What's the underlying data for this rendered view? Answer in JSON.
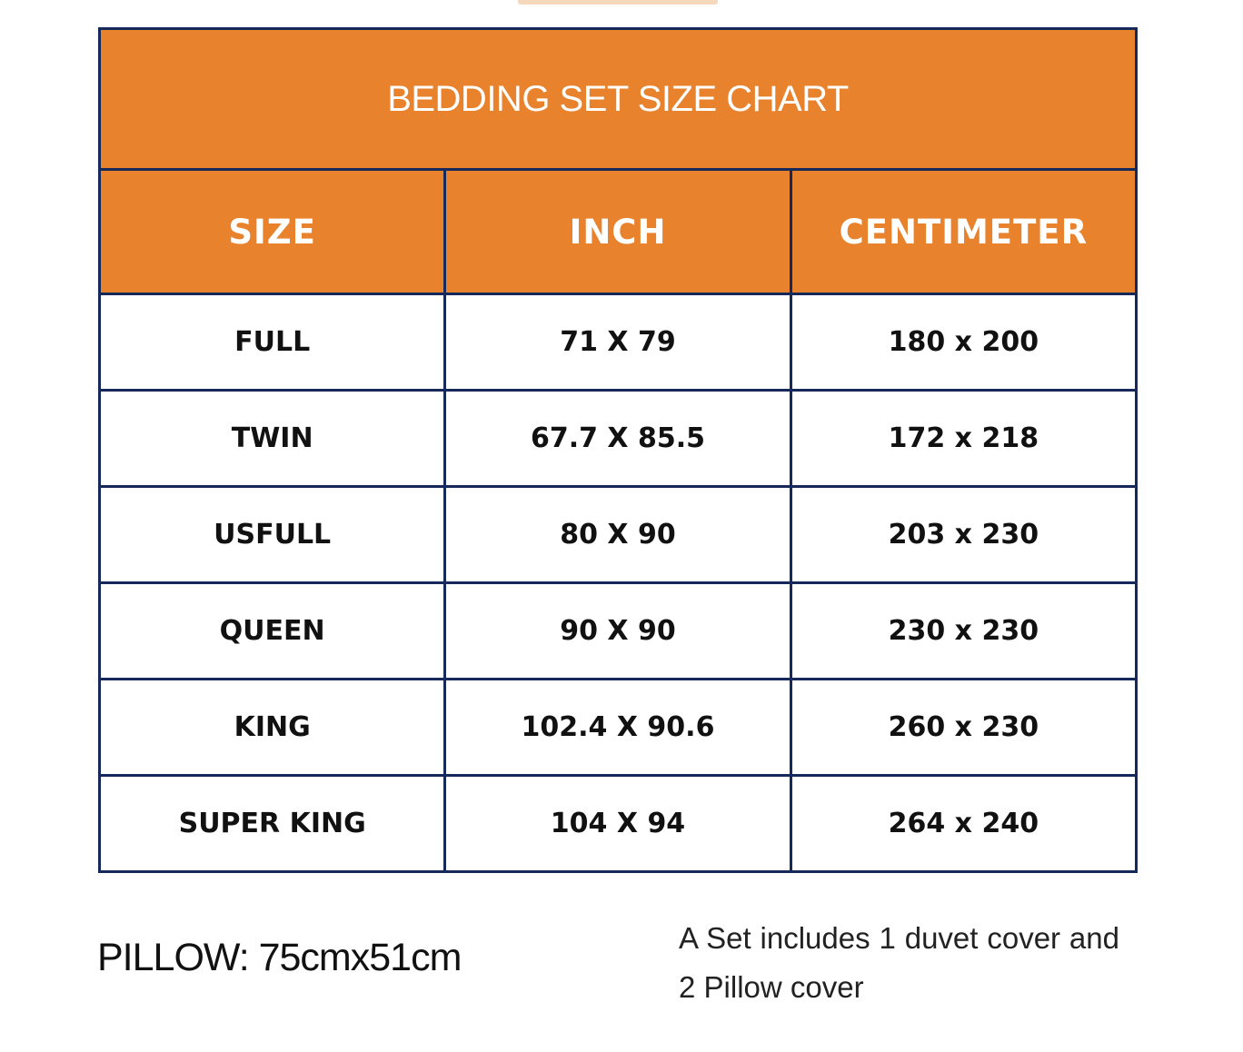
{
  "title": "BEDDING SET SIZE CHART",
  "headers": [
    "SIZE",
    "INCH",
    "CENTIMETER"
  ],
  "rows": [
    [
      "FULL",
      "71 X 79",
      "180 x 200"
    ],
    [
      "TWIN",
      "67.7 X 85.5",
      "172 x 218"
    ],
    [
      "USFULL",
      "80 X 90",
      "203 x 230"
    ],
    [
      "QUEEN",
      "90 X 90",
      "230 x 230"
    ],
    [
      "KING",
      "102.4 X 90.6",
      "260 x 230"
    ],
    [
      "SUPER KING",
      "104 X 94",
      "264 x 240"
    ]
  ],
  "pillow": "PILLOW: 75cmx51cm",
  "note": "A Set includes 1 duvet cover and 2 Pillow cover",
  "colors": {
    "header_bg": "#e8822d",
    "border": "#15295a"
  }
}
